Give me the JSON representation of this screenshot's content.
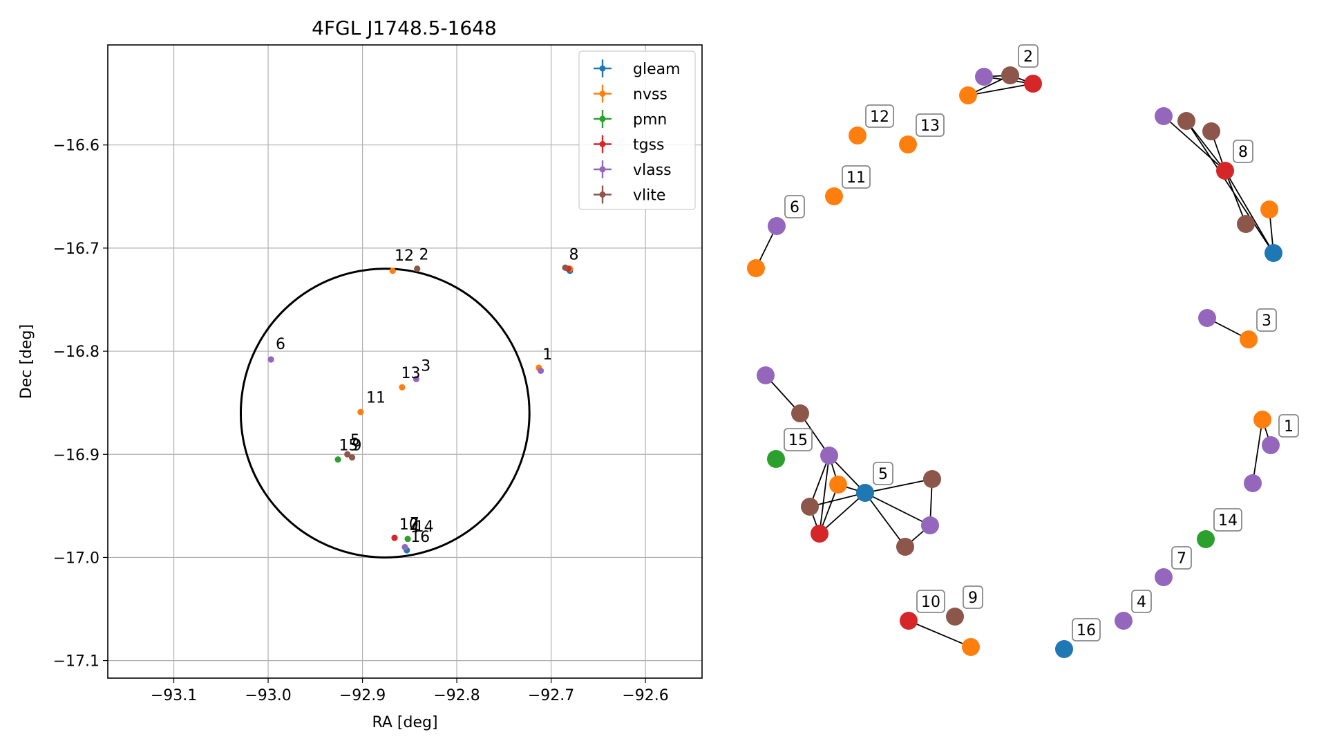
{
  "chart_data": [
    {
      "type": "scatter",
      "title": "4FGL J1748.5-1648",
      "xlabel": "RA [deg]",
      "ylabel": "Dec [deg]",
      "xlim": [
        -93.17,
        -92.54
      ],
      "ylim": [
        -17.117,
        -16.503
      ],
      "xticks": [
        -93.1,
        -93.0,
        -92.9,
        -92.8,
        -92.7,
        -92.6
      ],
      "xtick_labels": [
        "−93.1",
        "−93.0",
        "−92.9",
        "−92.8",
        "−92.7",
        "−92.6"
      ],
      "yticks": [
        -16.6,
        -16.7,
        -16.8,
        -16.9,
        -17.0,
        -17.1
      ],
      "ytick_labels": [
        "−16.6",
        "−16.7",
        "−16.8",
        "−16.9",
        "−17.0",
        "−17.1"
      ],
      "grid": true,
      "legend_position": "top-right",
      "series": [
        {
          "name": "gleam",
          "color": "#1f77b4",
          "points": [
            [
              -92.853,
              -16.993
            ],
            [
              -92.68,
              -16.722
            ]
          ]
        },
        {
          "name": "nvss",
          "color": "#ff7f0e",
          "points": [
            [
              -92.868,
              -16.722
            ],
            [
              -92.858,
              -16.835
            ],
            [
              -92.902,
              -16.859
            ],
            [
              -92.713,
              -16.816
            ],
            [
              -92.68,
              -16.72
            ]
          ]
        },
        {
          "name": "pmn",
          "color": "#2ca02c",
          "points": [
            [
              -92.926,
              -16.905
            ],
            [
              -92.852,
              -16.982
            ]
          ]
        },
        {
          "name": "tgss",
          "color": "#d62728",
          "points": [
            [
              -92.866,
              -16.981
            ],
            [
              -92.682,
              -16.72
            ]
          ]
        },
        {
          "name": "vlass",
          "color": "#9467bd",
          "points": [
            [
              -92.997,
              -16.808
            ],
            [
              -92.843,
              -16.827
            ],
            [
              -92.711,
              -16.819
            ],
            [
              -92.855,
              -16.99
            ]
          ]
        },
        {
          "name": "vlite",
          "color": "#8c564b",
          "points": [
            [
              -92.842,
              -16.72
            ],
            [
              -92.916,
              -16.9
            ],
            [
              -92.911,
              -16.903
            ],
            [
              -92.685,
              -16.719
            ]
          ]
        }
      ],
      "ellipse": {
        "center": [
          -92.876,
          -16.86
        ],
        "semi_axis_ra": 0.153,
        "semi_axis_dec": 0.14,
        "rotation_deg": -18
      },
      "annotations": [
        {
          "text": "12",
          "x": -92.866,
          "y": -16.712
        },
        {
          "text": "2",
          "x": -92.84,
          "y": -16.711
        },
        {
          "text": "8",
          "x": -92.681,
          "y": -16.711
        },
        {
          "text": "6",
          "x": -92.992,
          "y": -16.798
        },
        {
          "text": "1",
          "x": -92.709,
          "y": -16.808
        },
        {
          "text": "3",
          "x": -92.838,
          "y": -16.819
        },
        {
          "text": "13",
          "x": -92.859,
          "y": -16.826
        },
        {
          "text": "11",
          "x": -92.896,
          "y": -16.85
        },
        {
          "text": "5",
          "x": -92.913,
          "y": -16.891
        },
        {
          "text": "15",
          "x": -92.925,
          "y": -16.896
        },
        {
          "text": "9",
          "x": -92.911,
          "y": -16.896
        },
        {
          "text": "10",
          "x": -92.861,
          "y": -16.973
        },
        {
          "text": "4",
          "x": -92.85,
          "y": -16.976
        },
        {
          "text": "7",
          "x": -92.85,
          "y": -16.972
        },
        {
          "text": "14",
          "x": -92.845,
          "y": -16.975
        },
        {
          "text": "16",
          "x": -92.849,
          "y": -16.985
        }
      ]
    },
    {
      "type": "network",
      "colors": {
        "gleam": "#1f77b4",
        "nvss": "#ff7f0e",
        "pmn": "#2ca02c",
        "tgss": "#d62728",
        "vlass": "#9467bd",
        "vlite": "#8c564b"
      },
      "nodes": [
        {
          "id": "n2a",
          "catalog": "vlass",
          "label": "",
          "pos": [
            1424,
            111
          ]
        },
        {
          "id": "n2b",
          "catalog": "vlite",
          "label": "2",
          "pos": [
            1462,
            109
          ]
        },
        {
          "id": "n2c",
          "catalog": "tgss",
          "label": "",
          "pos": [
            1495,
            121
          ]
        },
        {
          "id": "n2d",
          "catalog": "nvss",
          "label": "",
          "pos": [
            1401,
            138
          ]
        },
        {
          "id": "n12",
          "catalog": "nvss",
          "label": "12",
          "pos": [
            1241,
            196
          ]
        },
        {
          "id": "n13",
          "catalog": "nvss",
          "label": "13",
          "pos": [
            1314,
            209
          ]
        },
        {
          "id": "n11",
          "catalog": "nvss",
          "label": "11",
          "pos": [
            1207,
            284
          ]
        },
        {
          "id": "n6a",
          "catalog": "vlass",
          "label": "6",
          "pos": [
            1124,
            327
          ]
        },
        {
          "id": "n6b",
          "catalog": "nvss",
          "label": "",
          "pos": [
            1094,
            388
          ]
        },
        {
          "id": "n8a",
          "catalog": "vlass",
          "label": "",
          "pos": [
            1684,
            168
          ]
        },
        {
          "id": "n8b",
          "catalog": "vlite",
          "label": "",
          "pos": [
            1717,
            175
          ]
        },
        {
          "id": "n8c",
          "catalog": "vlite",
          "label": "",
          "pos": [
            1753,
            190
          ]
        },
        {
          "id": "n8d",
          "catalog": "tgss",
          "label": "8",
          "pos": [
            1773,
            247
          ]
        },
        {
          "id": "n8e",
          "catalog": "vlite",
          "label": "",
          "pos": [
            1803,
            324
          ]
        },
        {
          "id": "n8f",
          "catalog": "nvss",
          "label": "",
          "pos": [
            1837,
            303
          ]
        },
        {
          "id": "n8g",
          "catalog": "gleam",
          "label": "",
          "pos": [
            1843,
            366
          ]
        },
        {
          "id": "n3a",
          "catalog": "vlass",
          "label": "",
          "pos": [
            1747,
            460
          ]
        },
        {
          "id": "n3b",
          "catalog": "nvss",
          "label": "3",
          "pos": [
            1807,
            491
          ]
        },
        {
          "id": "n1a",
          "catalog": "nvss",
          "label": "",
          "pos": [
            1827,
            607
          ]
        },
        {
          "id": "n1b",
          "catalog": "vlass",
          "label": "1",
          "pos": [
            1839,
            644
          ]
        },
        {
          "id": "n1c",
          "catalog": "vlass",
          "label": "",
          "pos": [
            1813,
            699
          ]
        },
        {
          "id": "n5a",
          "catalog": "vlass",
          "label": "",
          "pos": [
            1108,
            543
          ]
        },
        {
          "id": "n5b",
          "catalog": "vlite",
          "label": "",
          "pos": [
            1158,
            598
          ]
        },
        {
          "id": "n15",
          "catalog": "pmn",
          "label": "15",
          "pos": [
            1123,
            664
          ]
        },
        {
          "id": "n5c",
          "catalog": "vlass",
          "label": "",
          "pos": [
            1200,
            659
          ]
        },
        {
          "id": "n5d",
          "catalog": "nvss",
          "label": "",
          "pos": [
            1213,
            701
          ]
        },
        {
          "id": "n5e",
          "catalog": "gleam",
          "label": "5",
          "pos": [
            1252,
            713
          ]
        },
        {
          "id": "n5f",
          "catalog": "vlite",
          "label": "",
          "pos": [
            1349,
            693
          ]
        },
        {
          "id": "n5g",
          "catalog": "vlite",
          "label": "",
          "pos": [
            1172,
            733
          ]
        },
        {
          "id": "n5h",
          "catalog": "tgss",
          "label": "",
          "pos": [
            1186,
            772
          ]
        },
        {
          "id": "n5i",
          "catalog": "vlass",
          "label": "",
          "pos": [
            1346,
            760
          ]
        },
        {
          "id": "n5j",
          "catalog": "vlite",
          "label": "",
          "pos": [
            1310,
            791
          ]
        },
        {
          "id": "n14",
          "catalog": "pmn",
          "label": "14",
          "pos": [
            1745,
            780
          ]
        },
        {
          "id": "n7",
          "catalog": "vlass",
          "label": "7",
          "pos": [
            1684,
            835
          ]
        },
        {
          "id": "n4",
          "catalog": "vlass",
          "label": "4",
          "pos": [
            1626,
            898
          ]
        },
        {
          "id": "n16",
          "catalog": "gleam",
          "label": "16",
          "pos": [
            1540,
            939
          ]
        },
        {
          "id": "n9",
          "catalog": "vlite",
          "label": "9",
          "pos": [
            1382,
            892
          ]
        },
        {
          "id": "n10",
          "catalog": "tgss",
          "label": "10",
          "pos": [
            1315,
            898
          ]
        },
        {
          "id": "n10b",
          "catalog": "nvss",
          "label": "",
          "pos": [
            1405,
            936
          ]
        }
      ],
      "edges": [
        [
          "n2a",
          "n2b"
        ],
        [
          "n2b",
          "n2c"
        ],
        [
          "n2a",
          "n2c"
        ],
        [
          "n2d",
          "n2b"
        ],
        [
          "n2d",
          "n2c"
        ],
        [
          "n6a",
          "n6b"
        ],
        [
          "n8a",
          "n8d"
        ],
        [
          "n8b",
          "n8d"
        ],
        [
          "n8c",
          "n8d"
        ],
        [
          "n8d",
          "n8e"
        ],
        [
          "n8d",
          "n8g"
        ],
        [
          "n8f",
          "n8g"
        ],
        [
          "n8b",
          "n8g"
        ],
        [
          "n3a",
          "n3b"
        ],
        [
          "n1a",
          "n1b"
        ],
        [
          "n1a",
          "n1c"
        ],
        [
          "n5a",
          "n5b"
        ],
        [
          "n5b",
          "n5c"
        ],
        [
          "n5c",
          "n5d"
        ],
        [
          "n5c",
          "n5e"
        ],
        [
          "n5c",
          "n5g"
        ],
        [
          "n5c",
          "n5h"
        ],
        [
          "n5d",
          "n5e"
        ],
        [
          "n5d",
          "n5h"
        ],
        [
          "n5e",
          "n5f"
        ],
        [
          "n5e",
          "n5i"
        ],
        [
          "n5e",
          "n5j"
        ],
        [
          "n5e",
          "n5g"
        ],
        [
          "n5e",
          "n5h"
        ],
        [
          "n5f",
          "n5i"
        ],
        [
          "n5i",
          "n5j"
        ],
        [
          "n5g",
          "n5h"
        ],
        [
          "n10",
          "n10b"
        ]
      ]
    }
  ]
}
